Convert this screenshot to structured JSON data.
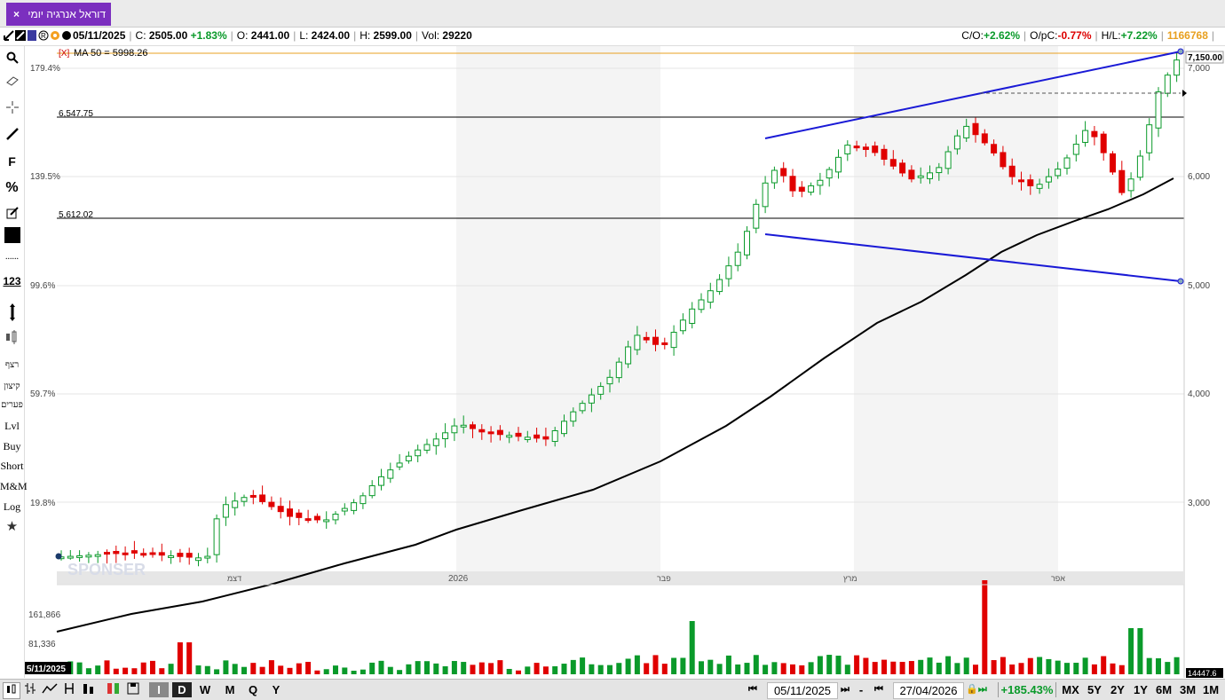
{
  "tab": {
    "title": "דוראל אנרגיה יומי",
    "close": "×"
  },
  "info": {
    "date": "05/11/2025",
    "c_label": "C:",
    "c_value": "2505.00",
    "c_change": "+1.83%",
    "o_label": "O:",
    "o_value": "2441.00",
    "l_label": "L:",
    "l_value": "2424.00",
    "h_label": "H:",
    "h_value": "2599.00",
    "vol_label": "Vol:",
    "vol_value": "29220",
    "co_label": "C/O:",
    "co_value": "+2.62%",
    "opc_label": "O/pC:",
    "opc_value": "-0.77%",
    "hl_label": "H/L:",
    "hl_value": "+7.22%",
    "id_value": "1166768"
  },
  "tools": {
    "f": "F",
    "pct": "%",
    "dots": "......",
    "num": "123",
    "heb1": "רצף",
    "heb2": "קיצון",
    "heb3": "פערים",
    "lvl": "Lvl",
    "buy": "Buy",
    "short": "Short",
    "mm": "M&M",
    "log": "Log"
  },
  "chart_labels": {
    "ma": "MA 50 = 5998.26",
    "ma_x": "[X]",
    "level1": "6,547.75",
    "level2": "5,612.02",
    "pct_labels": [
      "179.4%",
      "139.5%",
      "99.6%",
      "59.7%",
      "19.8%"
    ],
    "price_labels": [
      "7,000",
      "6,000",
      "5,000",
      "4,000",
      "3,000"
    ],
    "last_price": "7,150.00",
    "month_labels": [
      "דצמ",
      "2026",
      "פבר",
      "מרץ",
      "אפר"
    ],
    "vol_labels": [
      "161,866",
      "81,336"
    ],
    "vol_date": "5/11/2025",
    "vol_right": "14447.6",
    "watermark": "SPONSER"
  },
  "bottom": {
    "i": "I",
    "d": "D",
    "w": "W",
    "m": "M",
    "q": "Q",
    "y": "Y",
    "start_date": "05/11/2025",
    "end_date": "27/04/2026",
    "change": "+185.43%",
    "periods": [
      "MX",
      "5Y",
      "2Y",
      "1Y",
      "6M",
      "3M",
      "1M"
    ],
    "dash": "-"
  },
  "colors": {
    "up": "#0a9a2a",
    "down": "#e00000",
    "ma": "#000000",
    "channel": "#1a1ad6",
    "tab": "#7b2fbf"
  },
  "chart_data": {
    "type": "candlestick",
    "series": [
      {
        "name": "MA 50",
        "last_value": 5998.26
      }
    ],
    "price_axis": [
      3000,
      4000,
      5000,
      6000,
      7000
    ],
    "levels": [
      6547.75,
      5612.02
    ],
    "last_close": 7150.0
  }
}
